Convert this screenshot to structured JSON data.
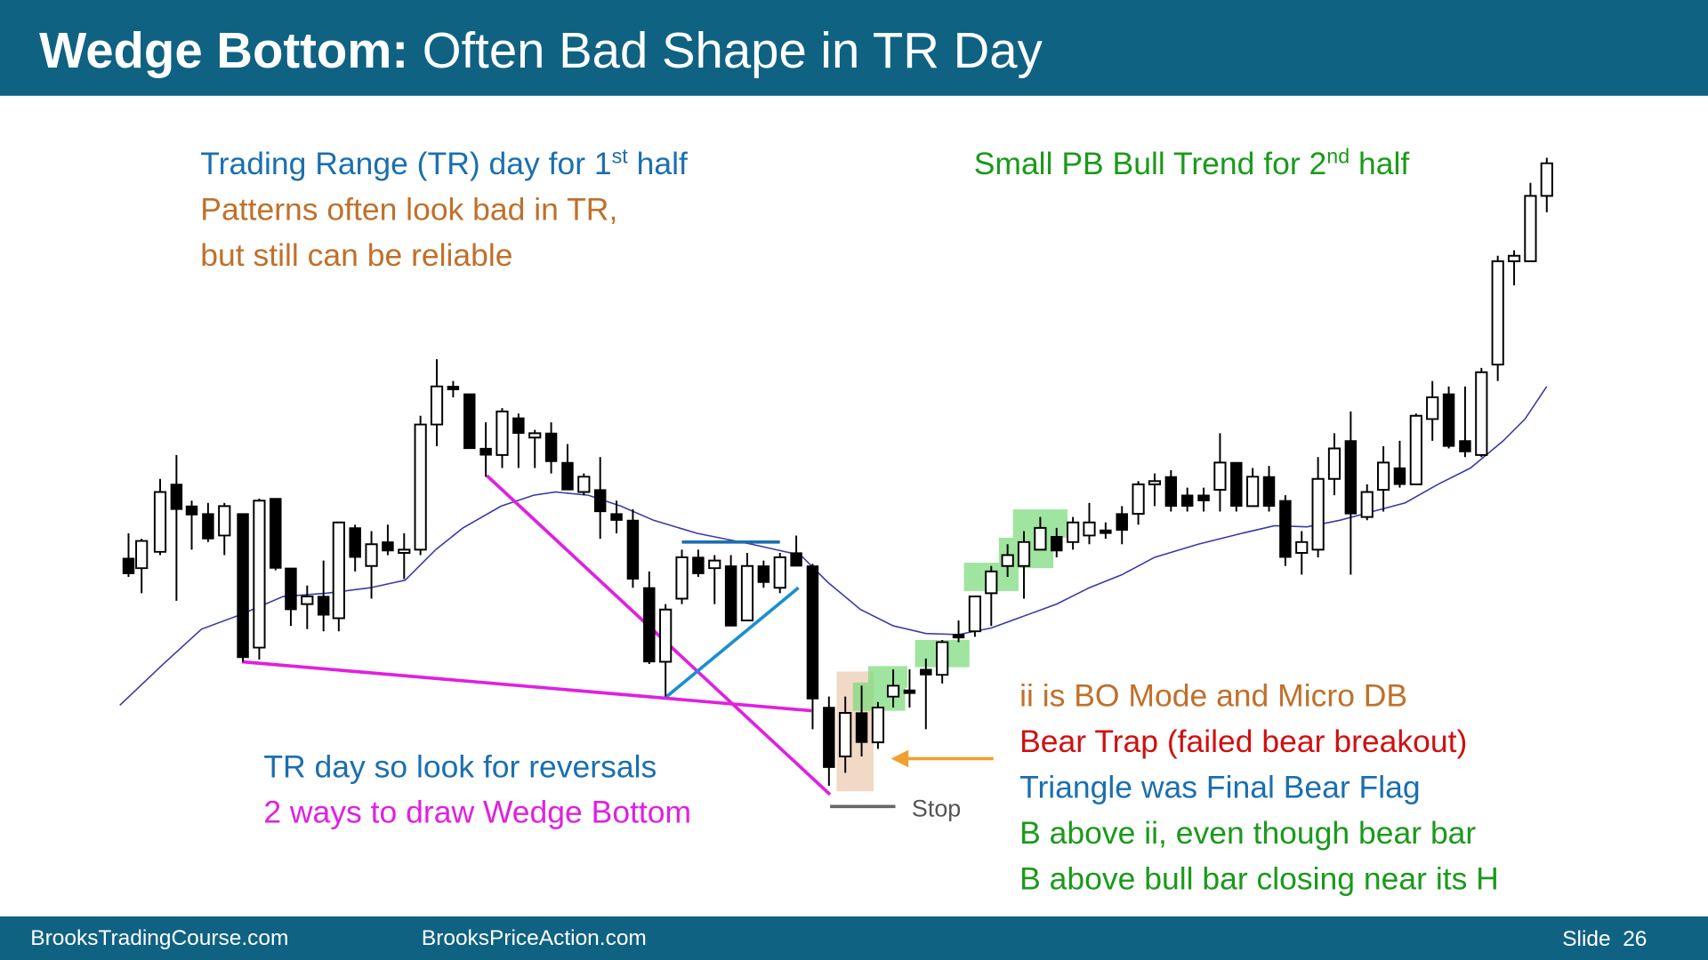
{
  "header": {
    "title_bold": "Wedge Bottom:",
    "title_rest": " Often Bad Shape in TR Day"
  },
  "notes_left": [
    {
      "parts": [
        "Trading Range (TR) day for 1",
        "st",
        " half"
      ]
    },
    {
      "parts": [
        "Patterns often look bad in TR,"
      ]
    },
    {
      "parts": [
        "but still can be reliable"
      ]
    }
  ],
  "note_right": {
    "parts": [
      "Small PB Bull Trend for 2",
      "nd",
      " half"
    ]
  },
  "notes_bottom_left": [
    "TR day so look for reversals",
    "2 ways to draw Wedge Bottom"
  ],
  "notes_bottom_right": [
    "ii is BO Mode and Micro DB",
    "Bear Trap (failed bear breakout)",
    "Triangle was Final Bear Flag",
    "B above ii, even though bear bar",
    "B above bull bar closing near its H"
  ],
  "stop_label": "Stop",
  "footer": {
    "left": "BrooksTradingCourse.com",
    "middle": "BrooksPriceAction.com",
    "slide": "Slide  26"
  }
}
